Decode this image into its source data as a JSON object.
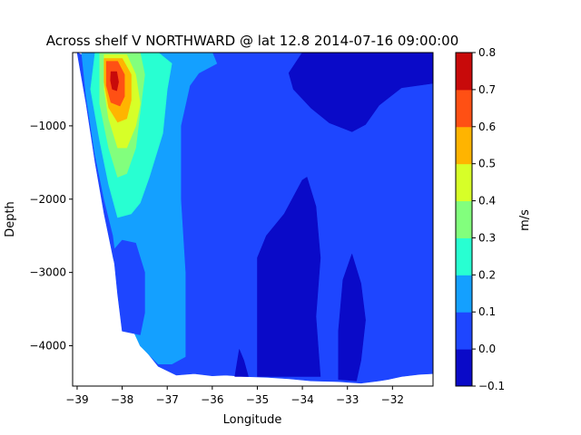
{
  "chart_data": {
    "type": "heatmap",
    "title": "Across shelf V NORTHWARD @ lat 12.8 2014-07-16 09:00:00",
    "xlabel": "Longitude",
    "ylabel": "Depth",
    "xlim": [
      -39.1,
      -31.1
    ],
    "ylim": [
      -4550,
      0
    ],
    "xticks": [
      -39,
      -38,
      -37,
      -36,
      -35,
      -34,
      -33,
      -32
    ],
    "xtick_labels": [
      "−39",
      "−38",
      "−37",
      "−36",
      "−35",
      "−34",
      "−33",
      "−32"
    ],
    "yticks": [
      -1000,
      -2000,
      -3000,
      -4000
    ],
    "ytick_labels": [
      "−1000",
      "−2000",
      "−3000",
      "−4000"
    ],
    "colorbar": {
      "label": "m/s",
      "levels": [
        -0.1,
        0.0,
        0.1,
        0.2,
        0.3,
        0.4,
        0.5,
        0.6,
        0.7,
        0.8
      ],
      "level_labels": [
        "−0.1",
        "0.0",
        "0.1",
        "0.2",
        "0.3",
        "0.4",
        "0.5",
        "0.6",
        "0.7",
        "0.8"
      ],
      "colors": [
        "#0a0ac8",
        "#1e46ff",
        "#14a0ff",
        "#28ffd2",
        "#82ff7d",
        "#d7ff28",
        "#ffb400",
        "#ff5014",
        "#c80a0a"
      ]
    },
    "regions": [
      {
        "level": "0.0 to 0.1",
        "color": "#1e46ff",
        "polygon": [
          [
            -38.5,
            -150
          ],
          [
            -36.6,
            0
          ],
          [
            -33.0,
            0
          ],
          [
            -32.4,
            -100
          ],
          [
            -31.1,
            -300
          ],
          [
            -31.1,
            -4380
          ],
          [
            -31.4,
            -4390
          ],
          [
            -31.8,
            -4420
          ],
          [
            -32.1,
            -4460
          ],
          [
            -32.3,
            -4480
          ],
          [
            -32.7,
            -4510
          ],
          [
            -33.2,
            -4490
          ],
          [
            -33.8,
            -4480
          ],
          [
            -34.3,
            -4450
          ],
          [
            -34.8,
            -4430
          ],
          [
            -35.3,
            -4420
          ],
          [
            -35.7,
            -4400
          ],
          [
            -36.0,
            -4410
          ],
          [
            -36.4,
            -4380
          ],
          [
            -36.8,
            -4400
          ],
          [
            -37.2,
            -4280
          ],
          [
            -37.5,
            -4050
          ],
          [
            -37.8,
            -3700
          ],
          [
            -38.0,
            -3300
          ],
          [
            -38.2,
            -2800
          ],
          [
            -38.4,
            -2200
          ],
          [
            -38.6,
            -1500
          ],
          [
            -38.8,
            -700
          ],
          [
            -39.0,
            0
          ]
        ]
      },
      {
        "level": "-0.1 to 0.0",
        "color": "#0a0ac8",
        "polygon": [
          [
            -34.0,
            0
          ],
          [
            -31.1,
            0
          ],
          [
            -31.1,
            -420
          ],
          [
            -31.8,
            -480
          ],
          [
            -32.3,
            -720
          ],
          [
            -32.6,
            -980
          ],
          [
            -32.9,
            -1080
          ],
          [
            -33.4,
            -960
          ],
          [
            -33.8,
            -760
          ],
          [
            -34.2,
            -500
          ],
          [
            -34.3,
            -280
          ]
        ]
      },
      {
        "level": "-0.1 to 0.0",
        "color": "#0a0ac8",
        "polygon": [
          [
            -35.0,
            -4420
          ],
          [
            -35.0,
            -2800
          ],
          [
            -34.8,
            -2500
          ],
          [
            -34.4,
            -2200
          ],
          [
            -34.0,
            -1740
          ],
          [
            -33.9,
            -1700
          ],
          [
            -33.7,
            -2100
          ],
          [
            -33.6,
            -2800
          ],
          [
            -33.7,
            -3600
          ],
          [
            -33.6,
            -4420
          ]
        ]
      },
      {
        "level": "-0.1 to 0.0",
        "color": "#0a0ac8",
        "polygon": [
          [
            -33.2,
            -4460
          ],
          [
            -33.2,
            -3800
          ],
          [
            -33.1,
            -3100
          ],
          [
            -32.9,
            -2750
          ],
          [
            -32.7,
            -3150
          ],
          [
            -32.6,
            -3650
          ],
          [
            -32.7,
            -4200
          ],
          [
            -32.8,
            -4480
          ]
        ]
      },
      {
        "level": "-0.1 to 0.0",
        "color": "#0a0ac8",
        "polygon": [
          [
            -35.5,
            -4420
          ],
          [
            -35.4,
            -4050
          ],
          [
            -35.3,
            -4200
          ],
          [
            -35.2,
            -4420
          ]
        ]
      },
      {
        "level": "0.1 to 0.2",
        "color": "#14a0ff",
        "polygon": [
          [
            -38.9,
            0
          ],
          [
            -36.0,
            0
          ],
          [
            -35.9,
            -150
          ],
          [
            -36.3,
            -280
          ],
          [
            -36.5,
            -450
          ],
          [
            -36.7,
            -1000
          ],
          [
            -36.7,
            -2000
          ],
          [
            -36.6,
            -3000
          ],
          [
            -36.6,
            -4150
          ],
          [
            -36.9,
            -4250
          ],
          [
            -37.2,
            -4250
          ],
          [
            -37.6,
            -4000
          ],
          [
            -37.9,
            -3600
          ],
          [
            -38.1,
            -3000
          ],
          [
            -38.2,
            -2500
          ],
          [
            -38.4,
            -2000
          ],
          [
            -38.6,
            -1400
          ],
          [
            -38.8,
            -600
          ]
        ]
      },
      {
        "level": "0.0 to 0.1",
        "color": "#1e46ff",
        "polygon": [
          [
            -38.0,
            -3800
          ],
          [
            -38.1,
            -3300
          ],
          [
            -38.2,
            -2700
          ],
          [
            -38.0,
            -2560
          ],
          [
            -37.7,
            -2600
          ],
          [
            -37.5,
            -3000
          ],
          [
            -37.5,
            -3550
          ],
          [
            -37.6,
            -3850
          ]
        ]
      },
      {
        "level": "0.2 to 0.3",
        "color": "#28ffd2",
        "polygon": [
          [
            -38.6,
            0
          ],
          [
            -37.2,
            0
          ],
          [
            -36.9,
            -150
          ],
          [
            -37.0,
            -500
          ],
          [
            -37.1,
            -1100
          ],
          [
            -37.4,
            -1700
          ],
          [
            -37.6,
            -2050
          ],
          [
            -37.8,
            -2200
          ],
          [
            -38.1,
            -2250
          ],
          [
            -38.3,
            -1800
          ],
          [
            -38.5,
            -1200
          ],
          [
            -38.7,
            -500
          ]
        ]
      },
      {
        "level": "0.3 to 0.4",
        "color": "#82ff7d",
        "polygon": [
          [
            -38.5,
            0
          ],
          [
            -37.6,
            0
          ],
          [
            -37.5,
            -300
          ],
          [
            -37.6,
            -800
          ],
          [
            -37.7,
            -1300
          ],
          [
            -37.9,
            -1650
          ],
          [
            -38.1,
            -1700
          ],
          [
            -38.3,
            -1300
          ],
          [
            -38.5,
            -700
          ]
        ]
      },
      {
        "level": "0.4 to 0.5",
        "color": "#d7ff28",
        "polygon": [
          [
            -38.4,
            -30
          ],
          [
            -37.9,
            -30
          ],
          [
            -37.7,
            -300
          ],
          [
            -37.6,
            -700
          ],
          [
            -37.7,
            -1000
          ],
          [
            -37.9,
            -1300
          ],
          [
            -38.1,
            -1300
          ],
          [
            -38.3,
            -900
          ],
          [
            -38.4,
            -500
          ]
        ]
      },
      {
        "level": "0.5 to 0.6",
        "color": "#ffb400",
        "polygon": [
          [
            -38.4,
            -80
          ],
          [
            -38.0,
            -80
          ],
          [
            -37.8,
            -300
          ],
          [
            -37.8,
            -650
          ],
          [
            -37.9,
            -900
          ],
          [
            -38.1,
            -950
          ],
          [
            -38.3,
            -750
          ],
          [
            -38.4,
            -400
          ]
        ]
      },
      {
        "level": "0.6 to 0.7",
        "color": "#ff5014",
        "polygon": [
          [
            -38.35,
            -120
          ],
          [
            -38.1,
            -120
          ],
          [
            -37.95,
            -300
          ],
          [
            -37.95,
            -600
          ],
          [
            -38.05,
            -730
          ],
          [
            -38.25,
            -680
          ],
          [
            -38.35,
            -450
          ]
        ]
      },
      {
        "level": "0.7 to 0.8",
        "color": "#c80a0a",
        "polygon": [
          [
            -38.25,
            -260
          ],
          [
            -38.12,
            -260
          ],
          [
            -38.08,
            -400
          ],
          [
            -38.12,
            -520
          ],
          [
            -38.22,
            -500
          ],
          [
            -38.26,
            -380
          ]
        ]
      }
    ]
  }
}
